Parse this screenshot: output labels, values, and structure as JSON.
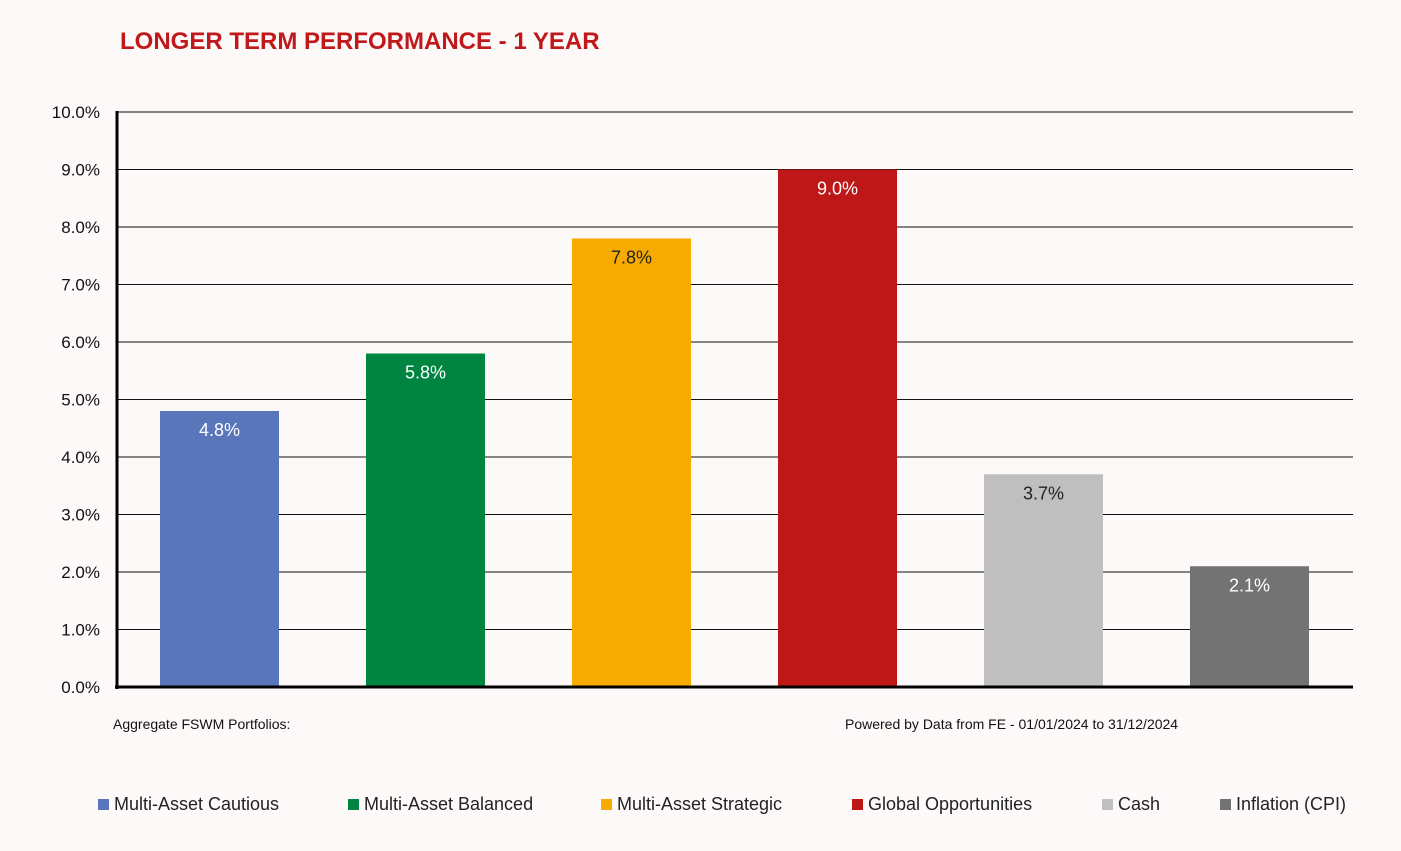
{
  "chart_data": {
    "type": "bar",
    "title": "LONGER TERM PERFORMANCE - 1 YEAR",
    "categories": [
      "Multi-Asset Cautious",
      "Multi-Asset Balanced",
      "Multi-Asset Strategic",
      "Global Opportunities",
      "Cash",
      "Inflation (CPI)"
    ],
    "values": [
      4.8,
      5.8,
      7.8,
      9.0,
      3.7,
      2.1
    ],
    "value_labels": [
      "4.8%",
      "5.8%",
      "7.8%",
      "9.0%",
      "3.7%",
      "2.1%"
    ],
    "colors": [
      "#5a76bb",
      "#008540",
      "#f7ab00",
      "#bd1718",
      "#bfbfbf",
      "#737373"
    ],
    "label_colors": [
      "#ffffff",
      "#ffffff",
      "#222222",
      "#ffffff",
      "#222222",
      "#ffffff"
    ],
    "ylim": [
      0,
      10
    ],
    "yticks": [
      0,
      1,
      2,
      3,
      4,
      5,
      6,
      7,
      8,
      9,
      10
    ],
    "ytick_labels": [
      "0.0%",
      "1.0%",
      "2.0%",
      "3.0%",
      "4.0%",
      "5.0%",
      "6.0%",
      "7.0%",
      "8.0%",
      "9.0%",
      "10.0%"
    ],
    "grid": true,
    "legend_position": "bottom",
    "xlabel": "",
    "ylabel": ""
  },
  "notes": {
    "left": "Aggregate FSWM Portfolios:",
    "right": "Powered by Data from FE - 01/01/2024 to 31/12/2024"
  }
}
